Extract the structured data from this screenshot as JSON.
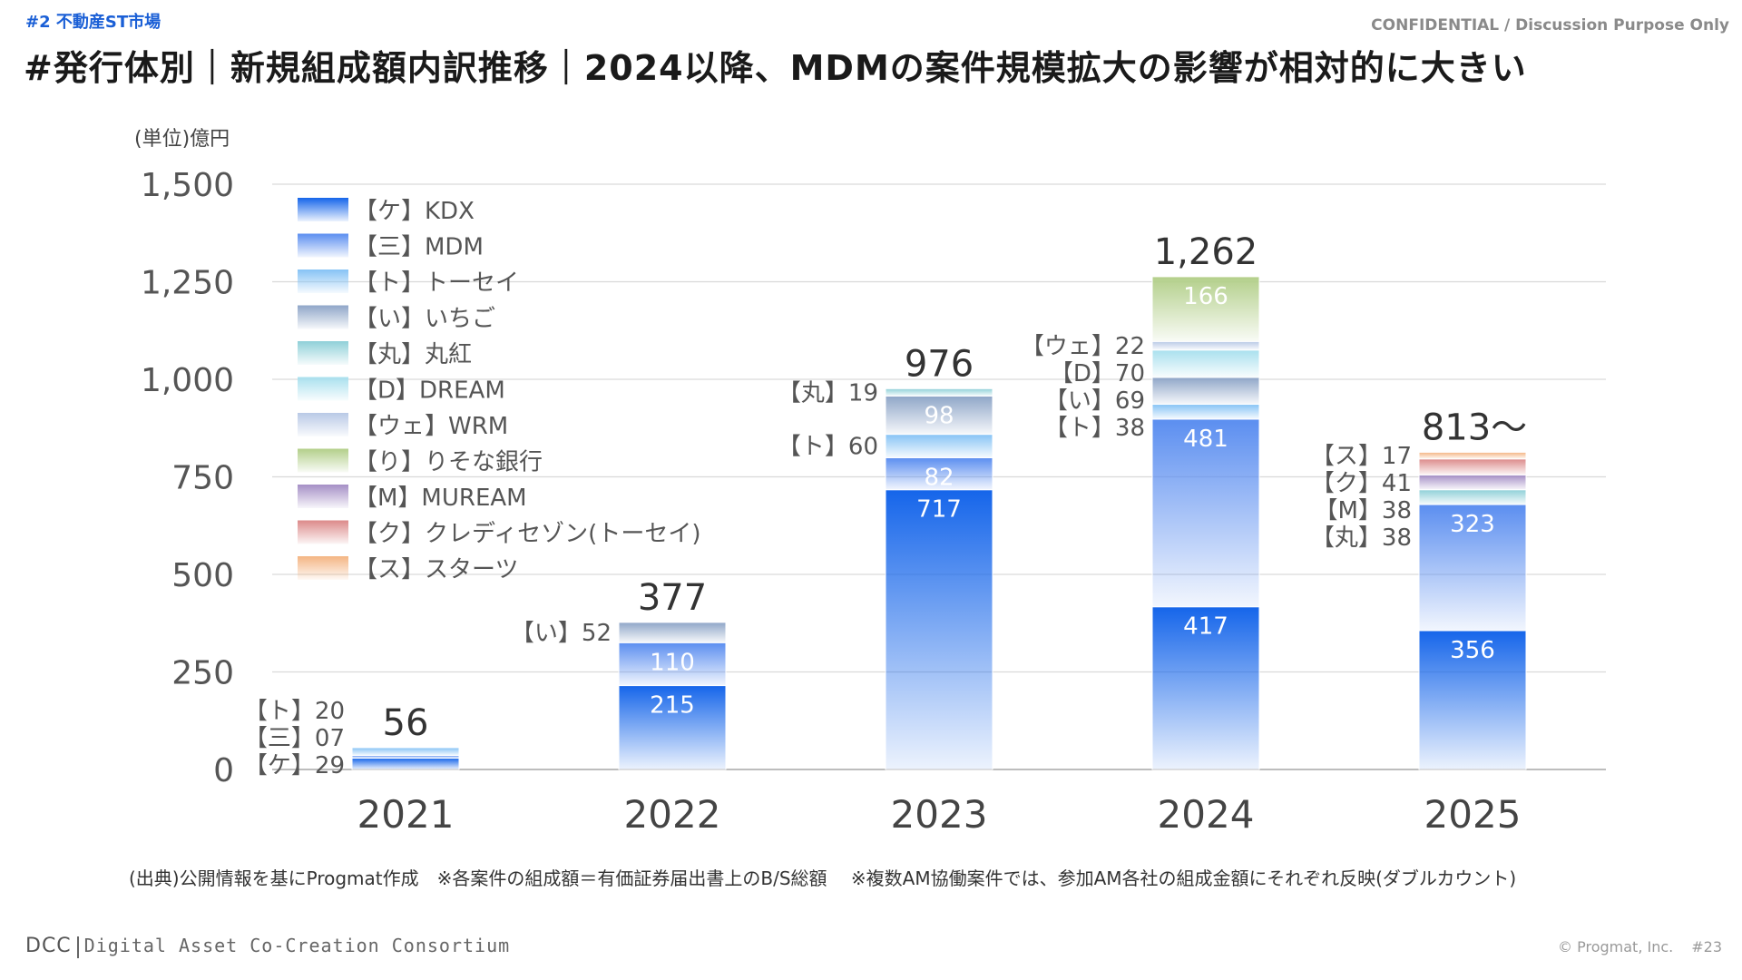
{
  "header": {
    "section_tag": "#2 不動産ST市場",
    "confidential": "CONFIDENTIAL / Discussion Purpose Only",
    "title": "#発行体別｜新規組成額内訳推移｜2024以降、MDMの案件規模拡大の影響が相対的に大きい"
  },
  "footer": {
    "source_note": "(出典)公開情報を基にProgmat作成　※各案件の組成額＝有価証券届出書上のB/S総額　 ※複数AM協働案件では、参加AM各社の組成金額にそれぞれ反映(ダブルカウント)",
    "logo_text": "DCC",
    "logo_subtext": "Digital Asset Co-Creation Consortium",
    "copyright": "© Progmat, Inc.",
    "page_number": "#23"
  },
  "chart_data": {
    "type": "bar",
    "stacked": true,
    "unit_label": "(単位)億円",
    "categories": [
      "2021",
      "2022",
      "2023",
      "2024",
      "2025"
    ],
    "ylim": [
      0,
      1500
    ],
    "yticks": [
      "0",
      "250",
      "500",
      "750",
      "1,000",
      "1,250",
      "1,500"
    ],
    "grid": true,
    "legend_position": "top-left",
    "totals": [
      "56",
      "377",
      "976",
      "1,262",
      "813〜"
    ],
    "series": [
      {
        "name": "【ケ】KDX",
        "color": "#1565ea",
        "values": [
          29,
          215,
          717,
          417,
          356
        ]
      },
      {
        "name": "【三】MDM",
        "color": "#5b8ef0",
        "values": [
          7,
          110,
          82,
          481,
          323
        ]
      },
      {
        "name": "【ト】トーセイ",
        "color": "#86c3f5",
        "values": [
          20,
          0,
          60,
          38,
          0
        ]
      },
      {
        "name": "【い】いちご",
        "color": "#8fa6c8",
        "values": [
          0,
          52,
          98,
          69,
          0
        ]
      },
      {
        "name": "【丸】丸紅",
        "color": "#8fd0d8",
        "values": [
          0,
          0,
          19,
          0,
          38
        ]
      },
      {
        "name": "【D】DREAM",
        "color": "#a9e0ee",
        "values": [
          0,
          0,
          0,
          70,
          0
        ]
      },
      {
        "name": "【ウェ】WRM",
        "color": "#b9c9e6",
        "values": [
          0,
          0,
          0,
          22,
          0
        ]
      },
      {
        "name": "【り】りそな銀行",
        "color": "#b3cf8a",
        "values": [
          0,
          0,
          0,
          166,
          0
        ]
      },
      {
        "name": "【M】MUREAM",
        "color": "#a58fc6",
        "values": [
          0,
          0,
          0,
          0,
          38
        ]
      },
      {
        "name": "【ク】クレディセゾン(トーセイ)",
        "color": "#dc8a8a",
        "values": [
          0,
          0,
          0,
          0,
          41
        ]
      },
      {
        "name": "【ス】スターツ",
        "color": "#f4b583",
        "values": [
          0,
          0,
          0,
          0,
          17
        ]
      }
    ],
    "inside_labels": [
      {
        "category": "2022",
        "series": "【ケ】KDX",
        "text": "215"
      },
      {
        "category": "2022",
        "series": "【三】MDM",
        "text": "110"
      },
      {
        "category": "2023",
        "series": "【ケ】KDX",
        "text": "717"
      },
      {
        "category": "2023",
        "series": "【三】MDM",
        "text": "82"
      },
      {
        "category": "2023",
        "series": "【い】いちご",
        "text": "98"
      },
      {
        "category": "2024",
        "series": "【ケ】KDX",
        "text": "417"
      },
      {
        "category": "2024",
        "series": "【三】MDM",
        "text": "481"
      },
      {
        "category": "2024",
        "series": "【り】りそな銀行",
        "text": "166"
      },
      {
        "category": "2025",
        "series": "【ケ】KDX",
        "text": "356"
      },
      {
        "category": "2025",
        "series": "【三】MDM",
        "text": "323"
      }
    ],
    "side_labels": [
      {
        "category": "2021",
        "series": "【ト】トーセイ",
        "text": "【ト】20"
      },
      {
        "category": "2021",
        "series": "【三】MDM",
        "text": "【三】07"
      },
      {
        "category": "2021",
        "series": "【ケ】KDX",
        "text": "【ケ】29"
      },
      {
        "category": "2022",
        "series": "【い】いちご",
        "text": "【い】52"
      },
      {
        "category": "2023",
        "series": "【丸】丸紅",
        "text": "【丸】19"
      },
      {
        "category": "2023",
        "series": "【ト】トーセイ",
        "text": "【ト】60"
      },
      {
        "category": "2024",
        "series": "【ウェ】WRM",
        "text": "【ウェ】22"
      },
      {
        "category": "2024",
        "series": "【D】DREAM",
        "text": "【D】70"
      },
      {
        "category": "2024",
        "series": "【ト】トーセイ",
        "text": "【ト】38"
      },
      {
        "category": "2024",
        "series": "【い】いちご",
        "text": "【い】69"
      },
      {
        "category": "2025",
        "series": "【ス】スターツ",
        "text": "【ス】17"
      },
      {
        "category": "2025",
        "series": "【ク】クレディセゾン(トーセイ)",
        "text": "【ク】41"
      },
      {
        "category": "2025",
        "series": "【M】MUREAM",
        "text": "【M】38"
      },
      {
        "category": "2025",
        "series": "【丸】丸紅",
        "text": "【丸】38"
      }
    ]
  }
}
